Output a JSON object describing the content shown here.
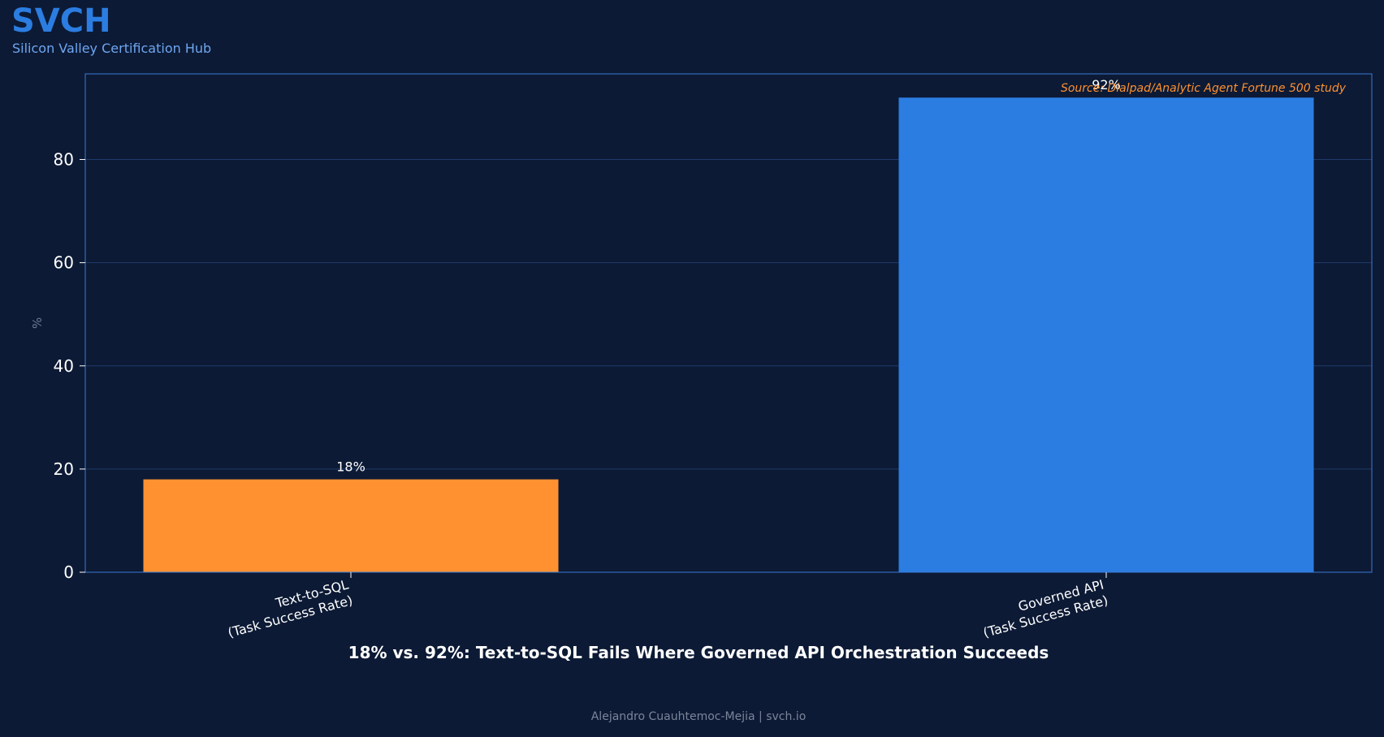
{
  "brand": {
    "title": "SVCH",
    "subtitle": "Silicon Valley Certification Hub"
  },
  "chart_data": {
    "type": "bar",
    "title": "18% vs. 92%: Text-to-SQL Fails Where Governed API Orchestration Succeeds",
    "xlabel": "",
    "ylabel": "%",
    "ylim": [
      0,
      96.6
    ],
    "yticks": [
      0,
      20,
      40,
      60,
      80
    ],
    "grid": true,
    "categories": [
      [
        "Text-to-SQL",
        "(Task Success Rate)"
      ],
      [
        "Governed API",
        "(Task Success Rate)"
      ]
    ],
    "values": [
      18,
      92
    ],
    "value_labels": [
      "18%",
      "92%"
    ],
    "colors": [
      "#ff9130",
      "#2b7de1"
    ],
    "annotation": "Source: Dialpad/Analytic Agent Fortune 500 study"
  },
  "footer": {
    "text": "Alejandro Cuauhtemoc-Mejia  |  svch.io"
  },
  "colors": {
    "background": "#0c1a35",
    "brand": "#2b7de1",
    "axes_frame": "#3a7bd5",
    "grid": "#1f3a6b",
    "annotation": "#ff9130",
    "footer": "#7a8599"
  }
}
